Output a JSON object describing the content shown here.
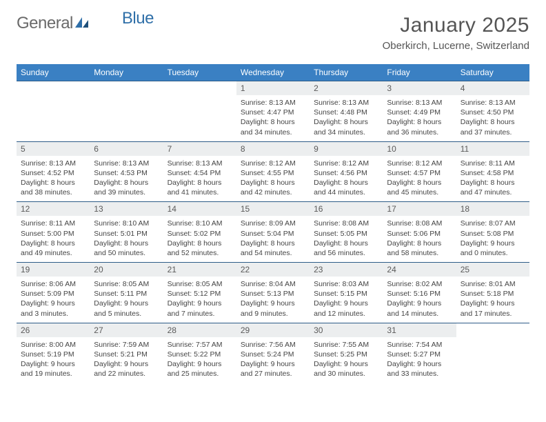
{
  "brand": {
    "part1": "General",
    "part2": "Blue"
  },
  "title": "January 2025",
  "location": "Oberkirch, Lucerne, Switzerland",
  "colors": {
    "header_bg": "#3a80c3",
    "header_text": "#ffffff",
    "row_border": "#2c5b87",
    "daynum_bg": "#eceeef",
    "text": "#444444",
    "logo_gray": "#6a6a6a",
    "logo_blue": "#2f6fa8"
  },
  "day_headers": [
    "Sunday",
    "Monday",
    "Tuesday",
    "Wednesday",
    "Thursday",
    "Friday",
    "Saturday"
  ],
  "weeks": [
    [
      null,
      null,
      null,
      {
        "n": "1",
        "sr": "8:13 AM",
        "ss": "4:47 PM",
        "dl": "8 hours and 34 minutes."
      },
      {
        "n": "2",
        "sr": "8:13 AM",
        "ss": "4:48 PM",
        "dl": "8 hours and 34 minutes."
      },
      {
        "n": "3",
        "sr": "8:13 AM",
        "ss": "4:49 PM",
        "dl": "8 hours and 36 minutes."
      },
      {
        "n": "4",
        "sr": "8:13 AM",
        "ss": "4:50 PM",
        "dl": "8 hours and 37 minutes."
      }
    ],
    [
      {
        "n": "5",
        "sr": "8:13 AM",
        "ss": "4:52 PM",
        "dl": "8 hours and 38 minutes."
      },
      {
        "n": "6",
        "sr": "8:13 AM",
        "ss": "4:53 PM",
        "dl": "8 hours and 39 minutes."
      },
      {
        "n": "7",
        "sr": "8:13 AM",
        "ss": "4:54 PM",
        "dl": "8 hours and 41 minutes."
      },
      {
        "n": "8",
        "sr": "8:12 AM",
        "ss": "4:55 PM",
        "dl": "8 hours and 42 minutes."
      },
      {
        "n": "9",
        "sr": "8:12 AM",
        "ss": "4:56 PM",
        "dl": "8 hours and 44 minutes."
      },
      {
        "n": "10",
        "sr": "8:12 AM",
        "ss": "4:57 PM",
        "dl": "8 hours and 45 minutes."
      },
      {
        "n": "11",
        "sr": "8:11 AM",
        "ss": "4:58 PM",
        "dl": "8 hours and 47 minutes."
      }
    ],
    [
      {
        "n": "12",
        "sr": "8:11 AM",
        "ss": "5:00 PM",
        "dl": "8 hours and 49 minutes."
      },
      {
        "n": "13",
        "sr": "8:10 AM",
        "ss": "5:01 PM",
        "dl": "8 hours and 50 minutes."
      },
      {
        "n": "14",
        "sr": "8:10 AM",
        "ss": "5:02 PM",
        "dl": "8 hours and 52 minutes."
      },
      {
        "n": "15",
        "sr": "8:09 AM",
        "ss": "5:04 PM",
        "dl": "8 hours and 54 minutes."
      },
      {
        "n": "16",
        "sr": "8:08 AM",
        "ss": "5:05 PM",
        "dl": "8 hours and 56 minutes."
      },
      {
        "n": "17",
        "sr": "8:08 AM",
        "ss": "5:06 PM",
        "dl": "8 hours and 58 minutes."
      },
      {
        "n": "18",
        "sr": "8:07 AM",
        "ss": "5:08 PM",
        "dl": "9 hours and 0 minutes."
      }
    ],
    [
      {
        "n": "19",
        "sr": "8:06 AM",
        "ss": "5:09 PM",
        "dl": "9 hours and 3 minutes."
      },
      {
        "n": "20",
        "sr": "8:05 AM",
        "ss": "5:11 PM",
        "dl": "9 hours and 5 minutes."
      },
      {
        "n": "21",
        "sr": "8:05 AM",
        "ss": "5:12 PM",
        "dl": "9 hours and 7 minutes."
      },
      {
        "n": "22",
        "sr": "8:04 AM",
        "ss": "5:13 PM",
        "dl": "9 hours and 9 minutes."
      },
      {
        "n": "23",
        "sr": "8:03 AM",
        "ss": "5:15 PM",
        "dl": "9 hours and 12 minutes."
      },
      {
        "n": "24",
        "sr": "8:02 AM",
        "ss": "5:16 PM",
        "dl": "9 hours and 14 minutes."
      },
      {
        "n": "25",
        "sr": "8:01 AM",
        "ss": "5:18 PM",
        "dl": "9 hours and 17 minutes."
      }
    ],
    [
      {
        "n": "26",
        "sr": "8:00 AM",
        "ss": "5:19 PM",
        "dl": "9 hours and 19 minutes."
      },
      {
        "n": "27",
        "sr": "7:59 AM",
        "ss": "5:21 PM",
        "dl": "9 hours and 22 minutes."
      },
      {
        "n": "28",
        "sr": "7:57 AM",
        "ss": "5:22 PM",
        "dl": "9 hours and 25 minutes."
      },
      {
        "n": "29",
        "sr": "7:56 AM",
        "ss": "5:24 PM",
        "dl": "9 hours and 27 minutes."
      },
      {
        "n": "30",
        "sr": "7:55 AM",
        "ss": "5:25 PM",
        "dl": "9 hours and 30 minutes."
      },
      {
        "n": "31",
        "sr": "7:54 AM",
        "ss": "5:27 PM",
        "dl": "9 hours and 33 minutes."
      },
      null
    ]
  ],
  "labels": {
    "sunrise": "Sunrise:",
    "sunset": "Sunset:",
    "daylight": "Daylight:"
  }
}
